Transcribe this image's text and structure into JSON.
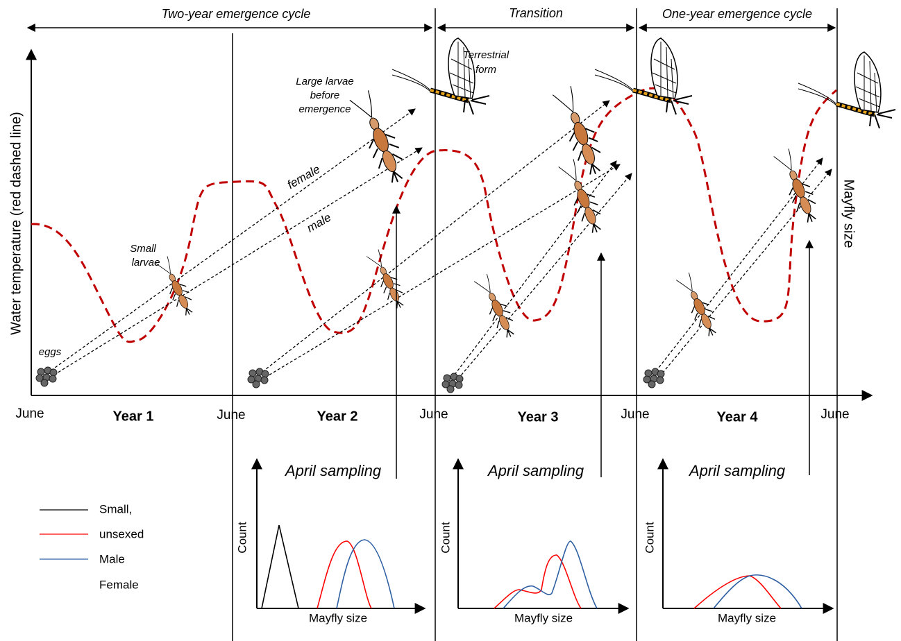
{
  "header": {
    "cycles": [
      "Two-year emergence cycle",
      "Transition",
      "One-year emergence cycle"
    ]
  },
  "axes": {
    "y_label": "Water temperature (red dashed line)",
    "right_label": "Mayfly  size",
    "months": [
      "June",
      "June",
      "June",
      "June",
      "June"
    ],
    "years": [
      "Year 1",
      "Year 2",
      "Year 3",
      "Year 4"
    ]
  },
  "annotations": {
    "terrestrial": [
      "Terrestrial",
      "form"
    ],
    "large": [
      "Large larvae",
      "before",
      "emergence"
    ],
    "small": [
      "Small",
      "larvae"
    ],
    "eggs": "eggs",
    "female": "female",
    "male": "male"
  },
  "panels": [
    {
      "title": "April sampling",
      "y_label": "Count",
      "x_label": "Mayfly size"
    },
    {
      "title": "April sampling",
      "y_label": "Count",
      "x_label": "Mayfly size"
    },
    {
      "title": "April sampling",
      "y_label": "Count",
      "x_label": "Mayfly size"
    }
  ],
  "legend": [
    "Small,",
    "unsexed",
    "Male",
    "Female"
  ]
}
